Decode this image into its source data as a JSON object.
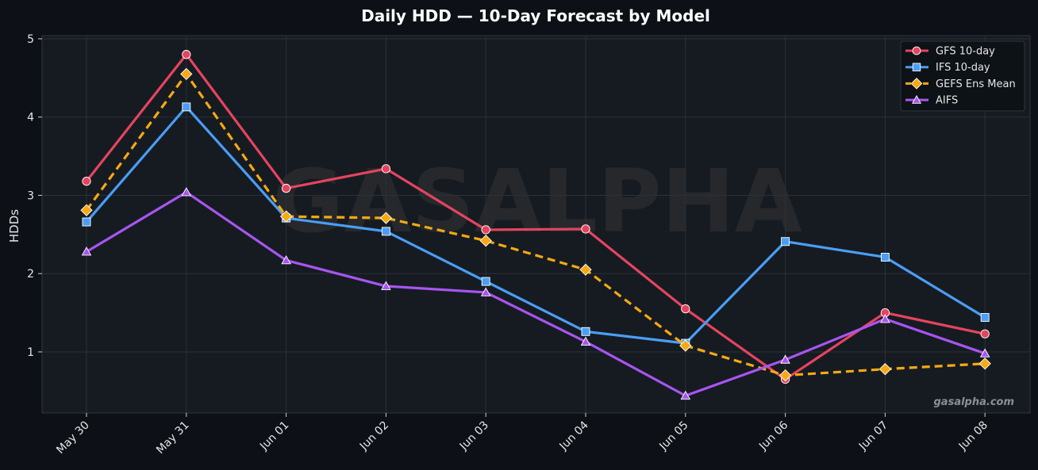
{
  "chart_data": {
    "type": "line",
    "title": "Daily HDD — 10-Day Forecast by Model",
    "xlabel": "",
    "ylabel": "HDDs",
    "categories": [
      "May 30",
      "May 31",
      "Jun 01",
      "Jun 02",
      "Jun 03",
      "Jun 04",
      "Jun 05",
      "Jun 06",
      "Jun 07",
      "Jun 08"
    ],
    "ylim": [
      0.22,
      5.04
    ],
    "yticks": [
      1,
      2,
      3,
      4,
      5
    ],
    "grid": true,
    "legend_position": "top-right",
    "series": [
      {
        "name": "GFS 10-day",
        "color": "#e5445f",
        "marker": "circle",
        "dashed": false,
        "values": [
          3.18,
          4.8,
          3.09,
          3.34,
          2.56,
          2.57,
          1.55,
          0.65,
          1.5,
          1.23
        ]
      },
      {
        "name": "IFS 10-day",
        "color": "#4a9ef5",
        "marker": "square",
        "dashed": false,
        "values": [
          2.66,
          4.13,
          2.71,
          2.54,
          1.9,
          1.26,
          1.11,
          2.41,
          2.21,
          1.44
        ]
      },
      {
        "name": "GEFS Ens Mean",
        "color": "#f5a912",
        "marker": "diamond",
        "dashed": true,
        "values": [
          2.81,
          4.55,
          2.73,
          2.71,
          2.42,
          2.05,
          1.08,
          0.7,
          0.78,
          0.85
        ]
      },
      {
        "name": "AIFS",
        "color": "#a855f0",
        "marker": "triangle",
        "dashed": false,
        "values": [
          2.28,
          3.04,
          2.17,
          1.84,
          1.76,
          1.13,
          0.44,
          0.9,
          1.42,
          0.98
        ]
      }
    ]
  },
  "watermark": "GASALPHA",
  "credit": "gasalpha.com"
}
